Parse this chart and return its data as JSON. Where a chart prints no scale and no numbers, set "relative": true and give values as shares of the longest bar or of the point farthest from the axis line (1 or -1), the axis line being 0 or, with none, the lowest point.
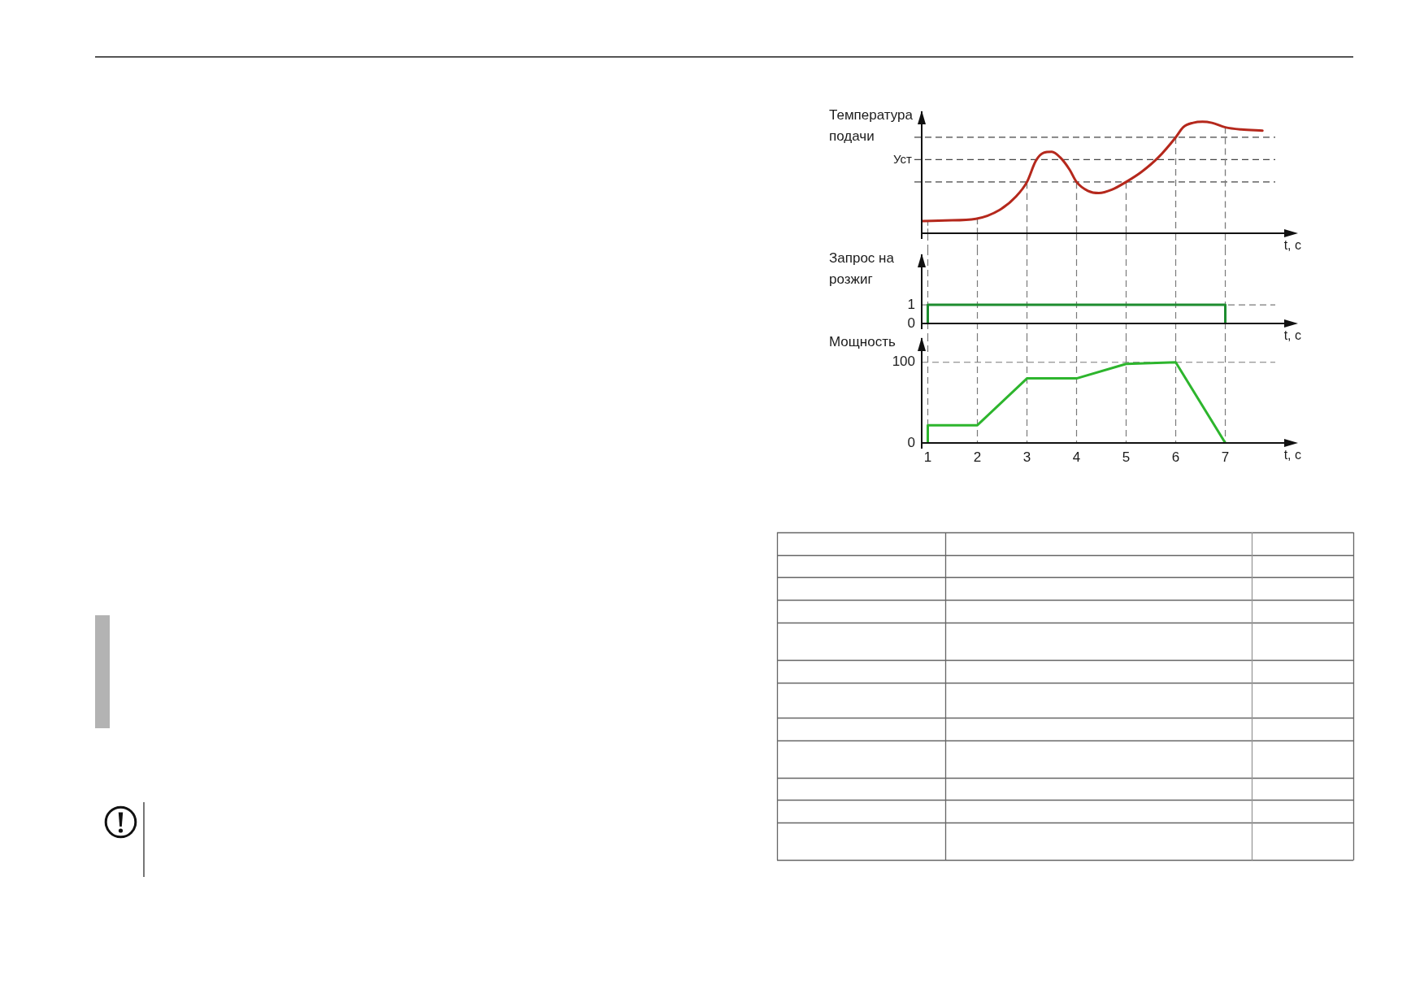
{
  "chart_data": [
    {
      "type": "line",
      "ylabel": "Температура подачи",
      "xlabel": "t, с",
      "relative": true,
      "tick_labels": false,
      "xlim": [
        0.877,
        8.188
      ],
      "xticks": [
        1,
        2,
        3,
        4,
        5,
        6,
        7
      ],
      "x": [
        0.9,
        1.35,
        1.97,
        2.45,
        2.78,
        3,
        3.18,
        3.33,
        3.5,
        3.67,
        3.86,
        4,
        4.23,
        4.45,
        4.71,
        5,
        5.31,
        5.65,
        6,
        6.15,
        6.35,
        6.54,
        6.73,
        7,
        7.32,
        7.75
      ],
      "series": [
        {
          "color": "#b5281c",
          "values": [
            0.11,
            0.115,
            0.13,
            0.21,
            0.33,
            0.46,
            0.65,
            0.72,
            0.73,
            0.68,
            0.57,
            0.46,
            0.38,
            0.36,
            0.39,
            0.46,
            0.55,
            0.68,
            0.86,
            0.95,
            0.99,
            1,
            0.99,
            0.95,
            0.93,
            0.92
          ]
        },
        {
          "color": "#7a7a7a",
          "line_style": "dashed",
          "x": [
            1,
            1
          ],
          "values": [
            0,
            0.11
          ]
        },
        {
          "color": "#7a7a7a",
          "line_style": "dashed",
          "x": [
            2,
            2
          ],
          "values": [
            0,
            0.13
          ]
        },
        {
          "color": "#7a7a7a",
          "line_style": "dashed",
          "x": [
            3,
            3
          ],
          "values": [
            0,
            0.46
          ]
        },
        {
          "color": "#7a7a7a",
          "line_style": "dashed",
          "x": [
            4,
            4
          ],
          "values": [
            0,
            0.46
          ]
        },
        {
          "color": "#7a7a7a",
          "line_style": "dashed",
          "x": [
            5,
            5
          ],
          "values": [
            0,
            0.46
          ]
        }
      ],
      "ref_lines": [
        {
          "axis": "y",
          "value": 0.86,
          "line_style": "dashed",
          "color": "#454545"
        },
        {
          "axis": "y",
          "value": 0.66,
          "label": "Уст",
          "line_style": "dashed",
          "color": "#454545"
        },
        {
          "axis": "y",
          "value": 0.46,
          "line_style": "dashed",
          "color": "#454545"
        },
        {
          "axis": "x",
          "value": 6,
          "line_style": "dashed",
          "color": "#7a7a7a"
        },
        {
          "axis": "x",
          "value": 7,
          "line_style": "dashed",
          "color": "#7a7a7a"
        }
      ]
    },
    {
      "type": "line",
      "ylabel": "Запрос на розжиг",
      "xlabel": "t, с",
      "tick_labels": "y",
      "xlim": [
        0.877,
        8.188
      ],
      "xticks": [
        1,
        2,
        3,
        4,
        5,
        6,
        7
      ],
      "ylim": [
        0,
        3.75
      ],
      "yticks": [
        0,
        1
      ],
      "grid": true,
      "x": [
        1,
        1,
        7,
        7
      ],
      "values": [
        0,
        1,
        1,
        0
      ],
      "color": "#1d8c2f"
    },
    {
      "type": "line",
      "ylabel": "Мощность",
      "xlabel": "t, с",
      "xlim": [
        0.877,
        8.188
      ],
      "xticks": [
        1,
        2,
        3,
        4,
        5,
        6,
        7
      ],
      "ylim": [
        0,
        131
      ],
      "yticks": [
        0,
        100
      ],
      "grid": true,
      "x": [
        1,
        1,
        2,
        3,
        4,
        5,
        6,
        7
      ],
      "values": [
        0,
        22,
        22,
        80,
        80,
        98,
        100,
        0
      ],
      "color": "#2db52d"
    }
  ]
}
